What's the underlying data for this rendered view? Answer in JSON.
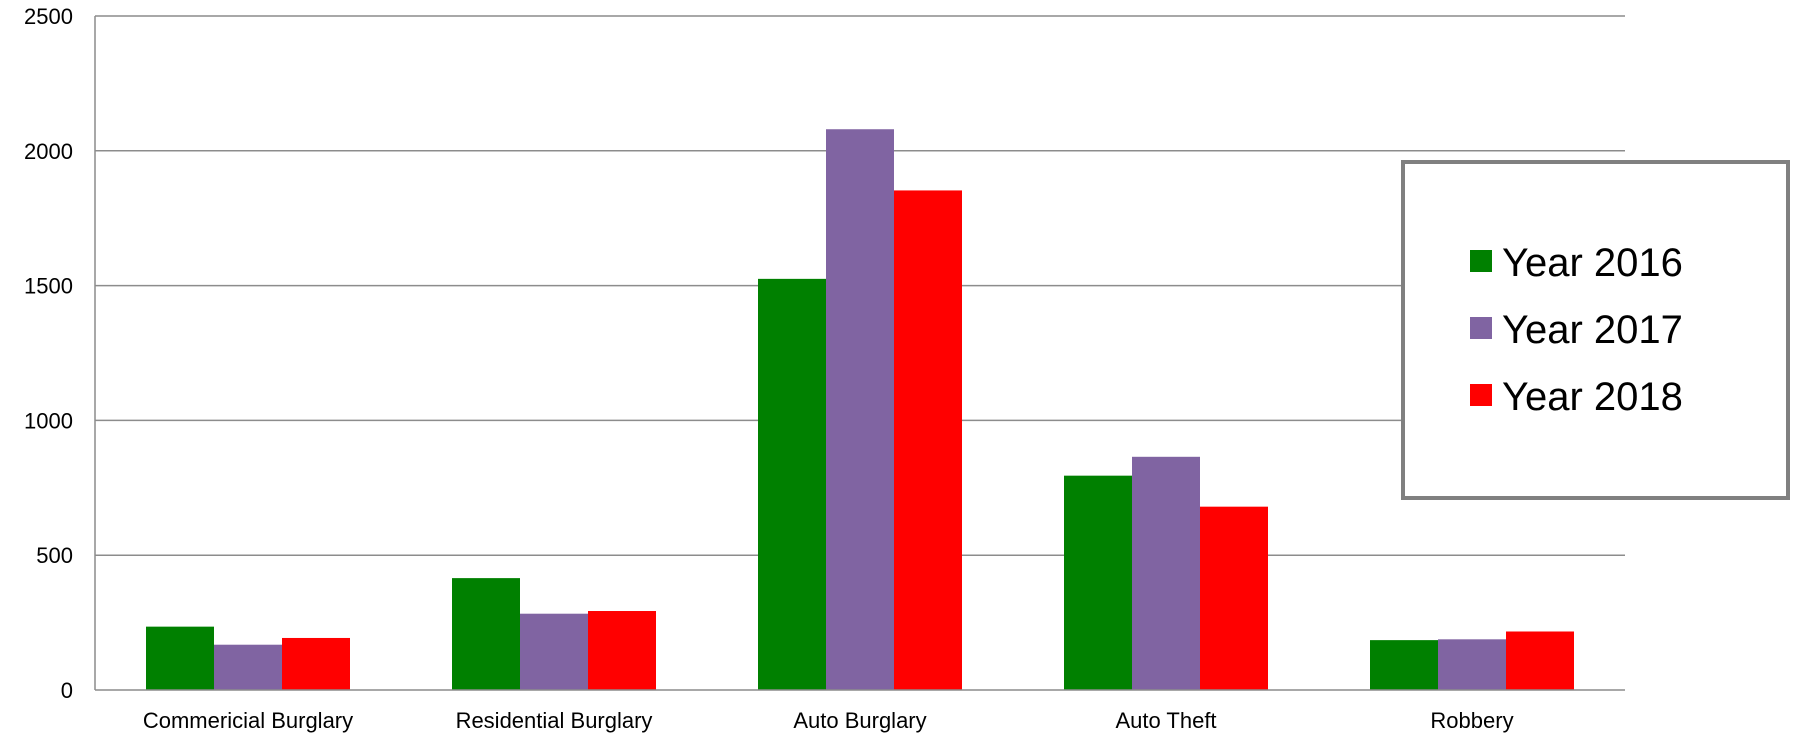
{
  "chart_data": {
    "type": "bar",
    "title": "",
    "xlabel": "",
    "ylabel": "",
    "ylim": [
      0,
      2500
    ],
    "yticks": [
      0,
      500,
      1000,
      1500,
      2000,
      2500
    ],
    "grid": true,
    "legend_position": "right",
    "categories": [
      "Commericial Burglary",
      "Residential Burglary",
      "Auto Burglary",
      "Auto Theft",
      "Robbery"
    ],
    "series": [
      {
        "name": "Year 2016",
        "color": "#008000",
        "values": [
          235,
          415,
          1525,
          795,
          185
        ]
      },
      {
        "name": "Year 2017",
        "color": "#8064A2",
        "values": [
          168,
          283,
          2080,
          865,
          188
        ]
      },
      {
        "name": "Year 2018",
        "color": "#FF0000",
        "values": [
          193,
          293,
          1853,
          680,
          217
        ]
      }
    ]
  }
}
